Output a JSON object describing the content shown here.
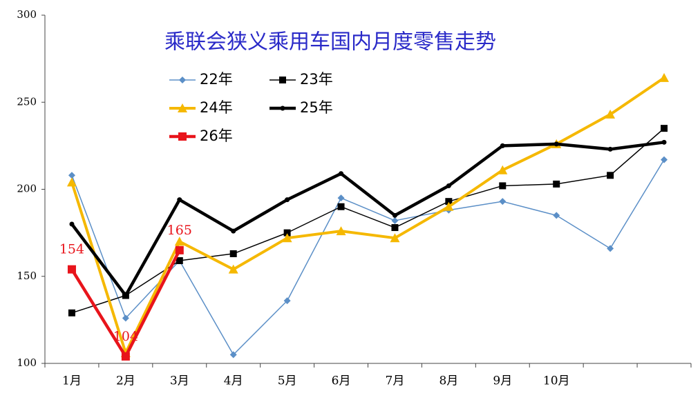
{
  "chart_data": {
    "type": "line",
    "title": "乘联会狭义乘用车国内月度零售走势",
    "categories": [
      "1月",
      "2月",
      "3月",
      "4月",
      "5月",
      "6月",
      "7月",
      "8月",
      "9月",
      "10月",
      null,
      null
    ],
    "ylim": [
      100,
      300
    ],
    "yticks": [
      100,
      150,
      200,
      250,
      300
    ],
    "grid": false,
    "series": [
      {
        "name": "22年",
        "color": "#5b8fc7",
        "marker": "diamond",
        "width": 1.5,
        "values": [
          208,
          126,
          159,
          105,
          136,
          195,
          182,
          188,
          193,
          185,
          166,
          217
        ]
      },
      {
        "name": "23年",
        "color": "#000000",
        "marker": "square",
        "width": 1.5,
        "values": [
          129,
          139,
          159,
          163,
          175,
          190,
          178,
          193,
          202,
          203,
          208,
          235
        ]
      },
      {
        "name": "24年",
        "color": "#f5b800",
        "marker": "triangle",
        "width": 4,
        "values": [
          204,
          106,
          170,
          154,
          172,
          176,
          172,
          190,
          211,
          226,
          243,
          264
        ]
      },
      {
        "name": "25年",
        "color": "#000000",
        "marker": "circle",
        "width": 4.5,
        "values": [
          180,
          139,
          194,
          176,
          194,
          209,
          185,
          202,
          225,
          226,
          223,
          227
        ]
      },
      {
        "name": "26年",
        "color": "#e8141b",
        "marker": "square",
        "width": 4.5,
        "values": [
          154,
          104,
          165,
          null,
          null,
          null,
          null,
          null,
          null,
          null,
          null,
          null
        ],
        "value_labels": [
          "154",
          "104",
          "165",
          null,
          null,
          null,
          null,
          null,
          null,
          null,
          null,
          null
        ]
      }
    ]
  }
}
